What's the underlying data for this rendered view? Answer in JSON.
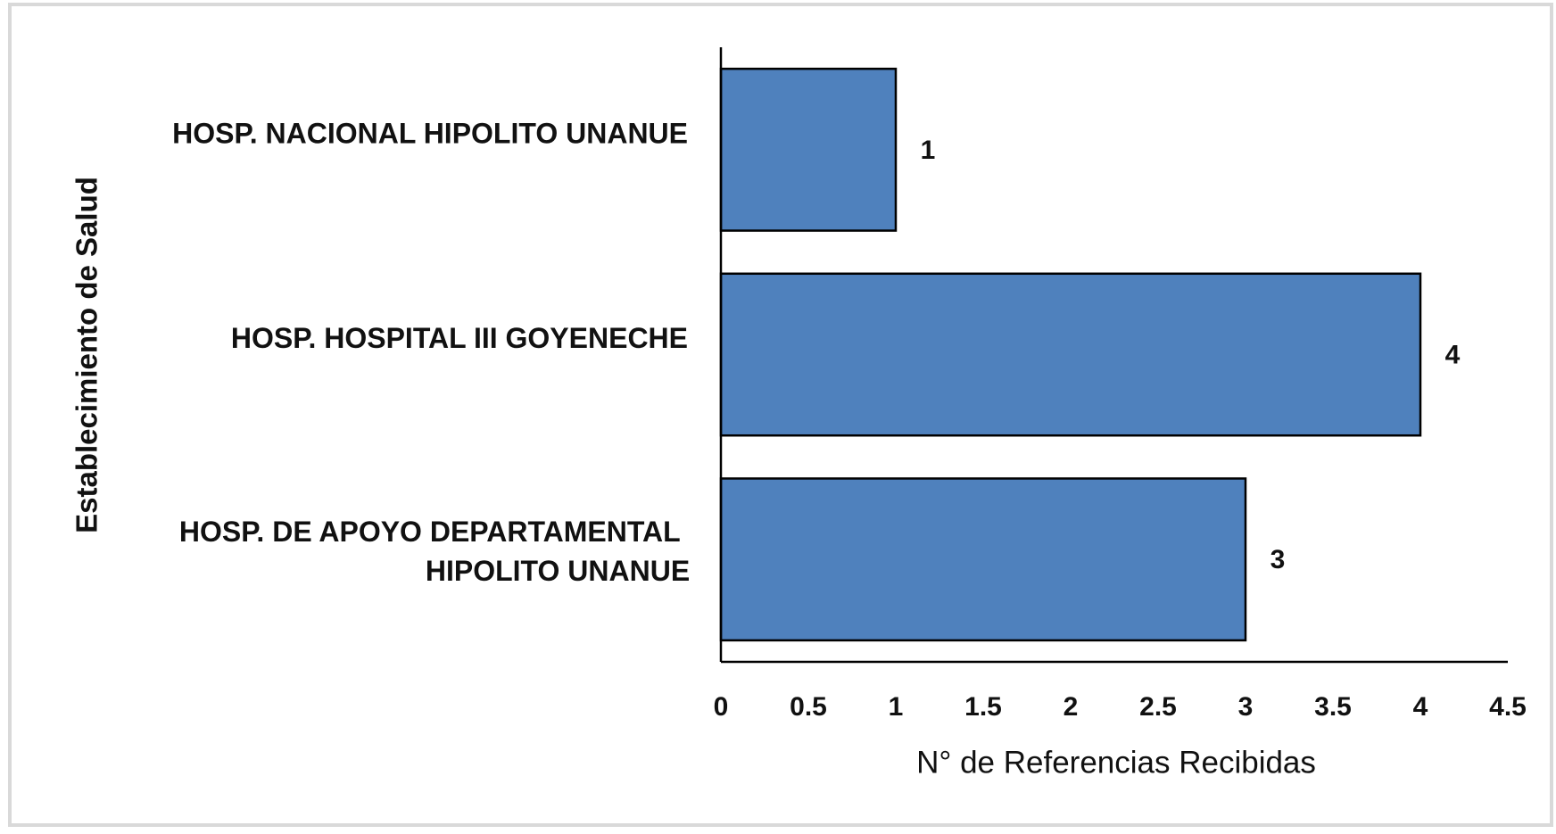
{
  "chart_data": {
    "type": "bar",
    "orientation": "horizontal",
    "xlabel": "N° de Referencias Recibidas",
    "ylabel": "Establecimiento de Salud",
    "categories": [
      "HOSP. NACIONAL HIPOLITO UNANUE",
      "HOSP. HOSPITAL III GOYENECHE",
      "HOSP. DE APOYO DEPARTAMENTAL HIPOLITO UNANUE"
    ],
    "values": [
      1,
      4,
      3
    ],
    "color": "#4f81bd",
    "xlim": [
      0,
      4.5
    ],
    "xticks": [
      0,
      0.5,
      1,
      1.5,
      2,
      2.5,
      3,
      3.5,
      4,
      4.5
    ],
    "grid": false
  }
}
